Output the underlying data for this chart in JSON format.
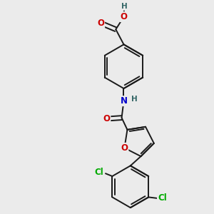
{
  "background_color": "#ebebeb",
  "bond_color": "#1a1a1a",
  "bond_width": 1.4,
  "atom_colors": {
    "O": "#cc0000",
    "N": "#0000cc",
    "Cl": "#00aa00",
    "H": "#336666",
    "C": "#1a1a1a"
  },
  "font_size": 8.5
}
